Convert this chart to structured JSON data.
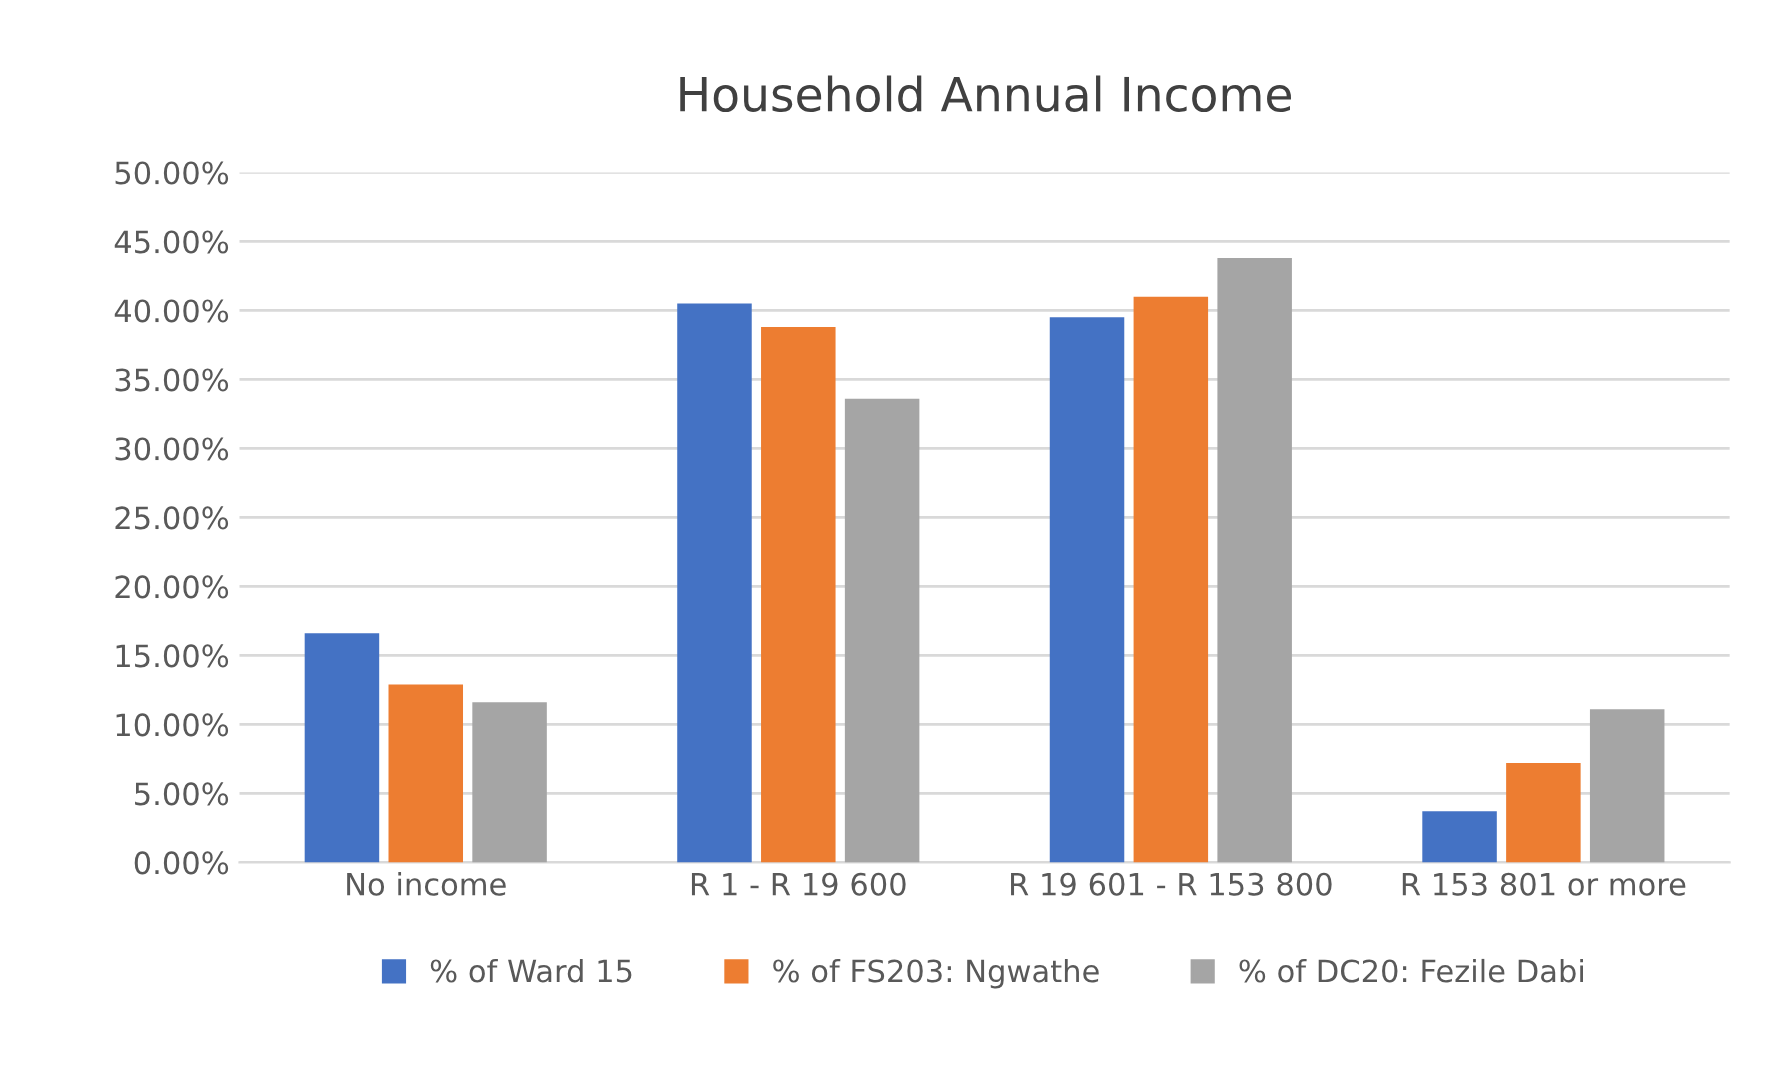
{
  "chart_data": {
    "type": "bar",
    "title": "Household Annual Income",
    "categories": [
      "No income",
      "R 1 - R 19 600",
      "R 19 601 - R 153 800",
      "R 153 801 or more"
    ],
    "series": [
      {
        "name": "% of Ward 15",
        "color": "#4472c4",
        "values": [
          16.6,
          40.5,
          39.5,
          3.7
        ]
      },
      {
        "name": "% of FS203: Ngwathe",
        "color": "#ed7d31",
        "values": [
          12.9,
          38.8,
          41.0,
          7.2
        ]
      },
      {
        "name": "% of DC20: Fezile Dabi",
        "color": "#a5a5a5",
        "values": [
          11.6,
          33.6,
          43.8,
          11.1
        ]
      }
    ],
    "ylim": [
      0,
      50
    ],
    "yticks": [
      {
        "value": 0,
        "label": "0.00%"
      },
      {
        "value": 5,
        "label": "5.00%"
      },
      {
        "value": 10,
        "label": "10.00%"
      },
      {
        "value": 15,
        "label": "15.00%"
      },
      {
        "value": 20,
        "label": "20.00%"
      },
      {
        "value": 25,
        "label": "25.00%"
      },
      {
        "value": 30,
        "label": "30.00%"
      },
      {
        "value": 35,
        "label": "35.00%"
      },
      {
        "value": 40,
        "label": "40.00%"
      },
      {
        "value": 45,
        "label": "45.00%"
      },
      {
        "value": 50,
        "label": "50.00%"
      }
    ],
    "grid": "y",
    "legend": "bottom"
  }
}
